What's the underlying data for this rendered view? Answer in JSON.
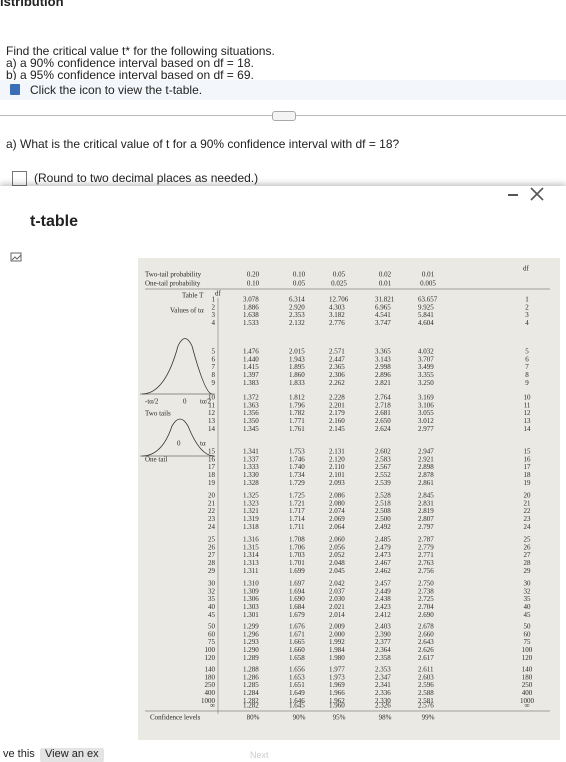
{
  "page": {
    "header_fragment": "istribution",
    "instructions": [
      "Find the critical value t* for the following situations.",
      "a) a 90% confidence interval based on df = 18.",
      "b) a 95% confidence interval based on df = 69."
    ],
    "hint": "Click the icon to view the t-table.",
    "question": "a) What is the critical value of t for a 90% confidence interval with df = 18?",
    "answer_note": "(Round to two decimal places as needed.)"
  },
  "dialog": {
    "title": "t-table",
    "table": {
      "two_tail_label": "Two-tail probability",
      "one_tail_label": "One-tail probability",
      "title": "Table T",
      "subtitle": "Values of tα",
      "two_tails_caption": "Two tails",
      "one_tail_caption": "One tail",
      "two_tail_axis": [
        "-tα/2",
        "0",
        "tα/2"
      ],
      "one_tail_axis": [
        "0",
        "tα"
      ],
      "df_label": "df",
      "two_tail": [
        "0.20",
        "0.10",
        "0.05",
        "0.02",
        "0.01"
      ],
      "one_tail": [
        "0.10",
        "0.05",
        "0.025",
        "0.01",
        "0.005"
      ],
      "rows": [
        [
          "1",
          "3.078",
          "6.314",
          "12.706",
          "31.821",
          "63.657"
        ],
        [
          "2",
          "1.886",
          "2.920",
          "4.303",
          "6.965",
          "9.925"
        ],
        [
          "3",
          "1.638",
          "2.353",
          "3.182",
          "4.541",
          "5.841"
        ],
        [
          "4",
          "1.533",
          "2.132",
          "2.776",
          "3.747",
          "4.604"
        ],
        [
          "5",
          "1.476",
          "2.015",
          "2.571",
          "3.365",
          "4.032"
        ],
        [
          "6",
          "1.440",
          "1.943",
          "2.447",
          "3.143",
          "3.707"
        ],
        [
          "7",
          "1.415",
          "1.895",
          "2.365",
          "2.998",
          "3.499"
        ],
        [
          "8",
          "1.397",
          "1.860",
          "2.306",
          "2.896",
          "3.355"
        ],
        [
          "9",
          "1.383",
          "1.833",
          "2.262",
          "2.821",
          "3.250"
        ],
        [
          "10",
          "1.372",
          "1.812",
          "2.228",
          "2.764",
          "3.169"
        ],
        [
          "11",
          "1.363",
          "1.796",
          "2.201",
          "2.718",
          "3.106"
        ],
        [
          "12",
          "1.356",
          "1.782",
          "2.179",
          "2.681",
          "3.055"
        ],
        [
          "13",
          "1.350",
          "1.771",
          "2.160",
          "2.650",
          "3.012"
        ],
        [
          "14",
          "1.345",
          "1.761",
          "2.145",
          "2.624",
          "2.977"
        ],
        [
          "15",
          "1.341",
          "1.753",
          "2.131",
          "2.602",
          "2.947"
        ],
        [
          "16",
          "1.337",
          "1.746",
          "2.120",
          "2.583",
          "2.921"
        ],
        [
          "17",
          "1.333",
          "1.740",
          "2.110",
          "2.567",
          "2.898"
        ],
        [
          "18",
          "1.330",
          "1.734",
          "2.101",
          "2.552",
          "2.878"
        ],
        [
          "19",
          "1.328",
          "1.729",
          "2.093",
          "2.539",
          "2.861"
        ],
        [
          "20",
          "1.325",
          "1.725",
          "2.086",
          "2.528",
          "2.845"
        ],
        [
          "21",
          "1.323",
          "1.721",
          "2.080",
          "2.518",
          "2.831"
        ],
        [
          "22",
          "1.321",
          "1.717",
          "2.074",
          "2.508",
          "2.819"
        ],
        [
          "23",
          "1.319",
          "1.714",
          "2.069",
          "2.500",
          "2.807"
        ],
        [
          "24",
          "1.318",
          "1.711",
          "2.064",
          "2.492",
          "2.797"
        ],
        [
          "25",
          "1.316",
          "1.708",
          "2.060",
          "2.485",
          "2.787"
        ],
        [
          "26",
          "1.315",
          "1.706",
          "2.056",
          "2.479",
          "2.779"
        ],
        [
          "27",
          "1.314",
          "1.703",
          "2.052",
          "2.473",
          "2.771"
        ],
        [
          "28",
          "1.313",
          "1.701",
          "2.048",
          "2.467",
          "2.763"
        ],
        [
          "29",
          "1.311",
          "1.699",
          "2.045",
          "2.462",
          "2.756"
        ],
        [
          "30",
          "1.310",
          "1.697",
          "2.042",
          "2.457",
          "2.750"
        ],
        [
          "32",
          "1.309",
          "1.694",
          "2.037",
          "2.449",
          "2.738"
        ],
        [
          "35",
          "1.306",
          "1.690",
          "2.030",
          "2.438",
          "2.725"
        ],
        [
          "40",
          "1.303",
          "1.684",
          "2.021",
          "2.423",
          "2.704"
        ],
        [
          "45",
          "1.301",
          "1.679",
          "2.014",
          "2.412",
          "2.690"
        ],
        [
          "50",
          "1.299",
          "1.676",
          "2.009",
          "2.403",
          "2.678"
        ],
        [
          "60",
          "1.296",
          "1.671",
          "2.000",
          "2.390",
          "2.660"
        ],
        [
          "75",
          "1.293",
          "1.665",
          "1.992",
          "2.377",
          "2.643"
        ],
        [
          "100",
          "1.290",
          "1.660",
          "1.984",
          "2.364",
          "2.626"
        ],
        [
          "120",
          "1.289",
          "1.658",
          "1.980",
          "2.358",
          "2.617"
        ],
        [
          "140",
          "1.288",
          "1.656",
          "1.977",
          "2.353",
          "2.611"
        ],
        [
          "180",
          "1.286",
          "1.653",
          "1.973",
          "2.347",
          "2.603"
        ],
        [
          "250",
          "1.285",
          "1.651",
          "1.969",
          "2.341",
          "2.596"
        ],
        [
          "400",
          "1.284",
          "1.649",
          "1.966",
          "2.336",
          "2.588"
        ],
        [
          "1000",
          "1.282",
          "1.646",
          "1.962",
          "2.330",
          "2.581"
        ],
        [
          "∞",
          "1.282",
          "1.645",
          "1.960",
          "2.326",
          "2.576"
        ]
      ],
      "confidence_label": "Confidence levels",
      "confidence": [
        "80%",
        "90%",
        "95%",
        "98%",
        "99%"
      ]
    }
  },
  "footer": {
    "left": "ve this",
    "link": "View an ex",
    "next": "Next"
  }
}
